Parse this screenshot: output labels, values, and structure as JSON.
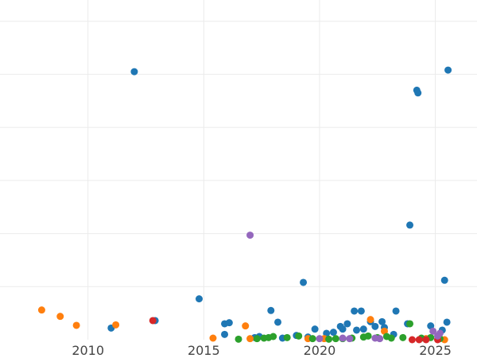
{
  "chart_data": {
    "type": "scatter",
    "title": "",
    "xlabel": "",
    "ylabel": "",
    "grid": true,
    "xlim": [
      2006.2,
      2026.8
    ],
    "ylim": [
      0,
      6.4
    ],
    "xticks": [
      2010,
      2015,
      2020,
      2025
    ],
    "xtick_labels": [
      "2010",
      "2015",
      "2020",
      "2025"
    ],
    "yticks": [
      1,
      2,
      3,
      4,
      5,
      6
    ],
    "colors": {
      "blue": "#1f77b4",
      "orange": "#ff7f0e",
      "green": "#2ca02c",
      "red": "#d62728",
      "purple": "#9467bd"
    },
    "series": [
      {
        "color": "#1f77b4",
        "points": [
          [
            2012.0,
            5.05
          ],
          [
            2012.9,
            0.36
          ],
          [
            2011.0,
            0.22
          ],
          [
            2014.8,
            0.77
          ],
          [
            2015.9,
            0.3
          ],
          [
            2016.1,
            0.32
          ],
          [
            2015.9,
            0.1
          ],
          [
            2017.2,
            0.04
          ],
          [
            2017.4,
            0.06
          ],
          [
            2017.9,
            0.55
          ],
          [
            2018.2,
            0.33
          ],
          [
            2018.4,
            0.03
          ],
          [
            2019.0,
            0.08
          ],
          [
            2019.3,
            1.08
          ],
          [
            2019.5,
            0.05
          ],
          [
            2019.8,
            0.2
          ],
          [
            2020.3,
            0.12
          ],
          [
            2020.9,
            0.25
          ],
          [
            2021.0,
            0.2
          ],
          [
            2021.2,
            0.3
          ],
          [
            2021.5,
            0.54
          ],
          [
            2021.8,
            0.54
          ],
          [
            2021.9,
            0.2
          ],
          [
            2022.2,
            0.34
          ],
          [
            2022.4,
            0.25
          ],
          [
            2022.7,
            0.34
          ],
          [
            2022.8,
            0.23
          ],
          [
            2023.2,
            0.1
          ],
          [
            2023.3,
            0.54
          ],
          [
            2023.8,
            0.3
          ],
          [
            2023.9,
            2.16
          ],
          [
            2024.2,
            4.7
          ],
          [
            2024.25,
            4.65
          ],
          [
            2024.8,
            0.26
          ],
          [
            2025.3,
            0.18
          ],
          [
            2025.4,
            1.12
          ],
          [
            2025.5,
            0.33
          ],
          [
            2025.55,
            5.08
          ],
          [
            2021.6,
            0.18
          ],
          [
            2020.6,
            0.14
          ]
        ]
      },
      {
        "color": "#ff7f0e",
        "points": [
          [
            2008.0,
            0.56
          ],
          [
            2008.8,
            0.44
          ],
          [
            2009.5,
            0.27
          ],
          [
            2011.2,
            0.28
          ],
          [
            2015.4,
            0.03
          ],
          [
            2016.8,
            0.26
          ],
          [
            2017.0,
            0.02
          ],
          [
            2019.5,
            0.02
          ],
          [
            2020.2,
            0.02
          ],
          [
            2022.2,
            0.38
          ],
          [
            2022.8,
            0.16
          ],
          [
            2025.4,
            0.0
          ],
          [
            2024.6,
            0.02
          ]
        ]
      },
      {
        "color": "#2ca02c",
        "points": [
          [
            2016.5,
            0.01
          ],
          [
            2017.3,
            0.02
          ],
          [
            2017.6,
            0.03
          ],
          [
            2017.8,
            0.04
          ],
          [
            2018.0,
            0.06
          ],
          [
            2018.6,
            0.04
          ],
          [
            2019.1,
            0.07
          ],
          [
            2019.7,
            0.02
          ],
          [
            2020.4,
            0.01
          ],
          [
            2020.7,
            0.02
          ],
          [
            2021.0,
            0.02
          ],
          [
            2021.4,
            0.03
          ],
          [
            2021.9,
            0.05
          ],
          [
            2022.1,
            0.07
          ],
          [
            2022.5,
            0.04
          ],
          [
            2022.9,
            0.06
          ],
          [
            2023.1,
            0.03
          ],
          [
            2023.6,
            0.04
          ],
          [
            2023.9,
            0.3
          ],
          [
            2024.4,
            0.03
          ],
          [
            2024.8,
            0.04
          ],
          [
            2025.2,
            0.02
          ]
        ]
      },
      {
        "color": "#d62728",
        "points": [
          [
            2012.8,
            0.36
          ],
          [
            2024.0,
            0.0
          ],
          [
            2024.3,
            0.0
          ],
          [
            2024.6,
            0.0
          ],
          [
            2025.1,
            0.0
          ]
        ]
      },
      {
        "color": "#9467bd",
        "points": [
          [
            2017.0,
            1.97
          ],
          [
            2020.0,
            0.02
          ],
          [
            2021.0,
            0.03
          ],
          [
            2021.3,
            0.02
          ],
          [
            2022.4,
            0.03
          ],
          [
            2022.6,
            0.02
          ],
          [
            2024.9,
            0.16
          ],
          [
            2025.1,
            0.07
          ],
          [
            2025.2,
            0.12
          ]
        ]
      }
    ]
  }
}
